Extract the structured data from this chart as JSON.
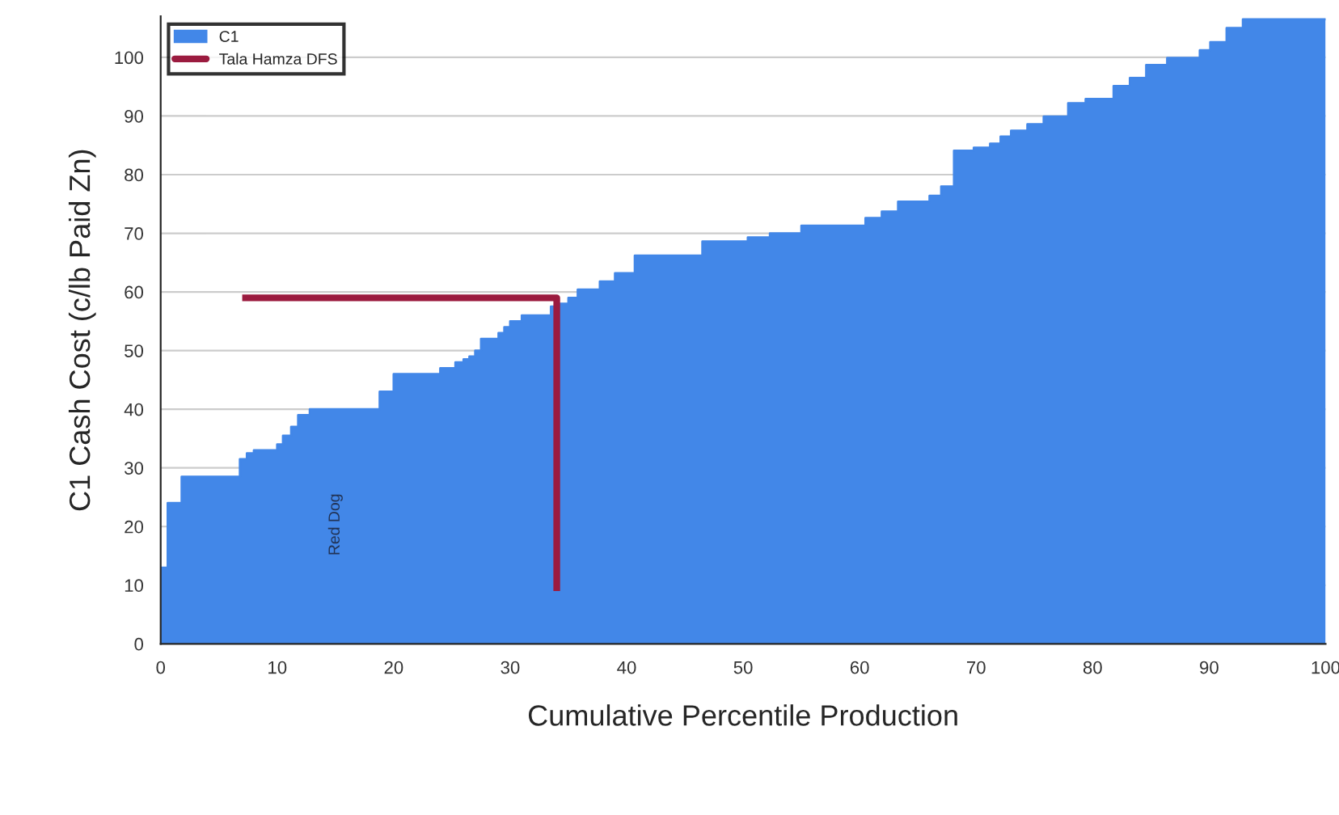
{
  "chart_data": {
    "type": "area",
    "xlabel": "Cumulative Percentile Production",
    "ylabel": "C1 Cash Cost (c/lb Paid Zn)",
    "xlim": [
      0,
      100
    ],
    "ylim": [
      0,
      107
    ],
    "xticks": [
      0,
      10,
      20,
      30,
      40,
      50,
      60,
      70,
      80,
      90,
      100
    ],
    "yticks": [
      0,
      10,
      20,
      30,
      40,
      50,
      60,
      70,
      80,
      90,
      100
    ],
    "grid": "y",
    "legend": "top left",
    "annotations": [
      "Red Dog"
    ],
    "series": [
      {
        "name": "C1",
        "color": "#4287e8",
        "x": [
          0,
          0.6,
          0.6,
          1.8,
          1.8,
          6.8,
          6.8,
          7.4,
          7.4,
          8,
          8,
          10,
          10,
          10.5,
          10.5,
          11.2,
          11.2,
          11.8,
          11.8,
          12.8,
          12.8,
          18.8,
          18.8,
          20,
          20,
          24,
          24,
          25.3,
          25.3,
          26,
          26,
          26.5,
          26.5,
          27,
          27,
          27.5,
          27.5,
          29,
          29,
          29.5,
          29.5,
          30,
          30,
          31,
          31,
          33.5,
          33.5,
          34,
          34,
          35,
          35,
          35.8,
          35.8,
          37.7,
          37.7,
          39,
          39,
          40.7,
          40.7,
          46.5,
          46.5,
          50.4,
          50.4,
          52.3,
          52.3,
          55,
          55,
          60.5,
          60.5,
          61.9,
          61.9,
          63.3,
          63.3,
          66,
          66,
          67,
          67,
          68.1,
          68.1,
          69.8,
          69.8,
          71.2,
          71.2,
          72.1,
          72.1,
          73,
          73,
          74.4,
          74.4,
          75.8,
          75.8,
          77.9,
          77.9,
          79.4,
          79.4,
          81.8,
          81.8,
          83.2,
          83.2,
          84.6,
          84.6,
          86.4,
          86.4,
          89.2,
          89.2,
          90.1,
          90.1,
          91.5,
          91.5,
          92.9,
          92.9,
          100
        ],
        "values": [
          13,
          13,
          24,
          24,
          28.5,
          28.5,
          31.5,
          31.5,
          32.5,
          32.5,
          33,
          33,
          34,
          34,
          35.5,
          35.5,
          37,
          37,
          39,
          39,
          40,
          40,
          43,
          43,
          46,
          46,
          47,
          47,
          48,
          48,
          48.5,
          48.5,
          49,
          49,
          50,
          50,
          52,
          52,
          53,
          53,
          54,
          54,
          55,
          55,
          56,
          56,
          57.5,
          57.5,
          58,
          58,
          59,
          59,
          60.4,
          60.4,
          61.8,
          61.8,
          63.2,
          63.2,
          66.2,
          66.2,
          68.6,
          68.6,
          69.3,
          69.3,
          70,
          70,
          71.3,
          71.3,
          72.6,
          72.6,
          73.7,
          73.7,
          75.4,
          75.4,
          76.4,
          76.4,
          78,
          78,
          84.1,
          84.1,
          84.6,
          84.6,
          85.3,
          85.3,
          86.5,
          86.5,
          87.5,
          87.5,
          88.6,
          88.6,
          89.9,
          89.9,
          92.2,
          92.2,
          92.9,
          92.9,
          95.1,
          95.1,
          96.5,
          96.5,
          98.7,
          98.7,
          99.9,
          99.9,
          101.2,
          101.2,
          102.6,
          102.6,
          105,
          105,
          106.5,
          106.5
        ]
      },
      {
        "name": "Tala Hamza DFS",
        "type": "line",
        "color": "#9b1b3f",
        "x": [
          7,
          34,
          34
        ],
        "values": [
          59,
          59,
          9
        ]
      }
    ]
  }
}
